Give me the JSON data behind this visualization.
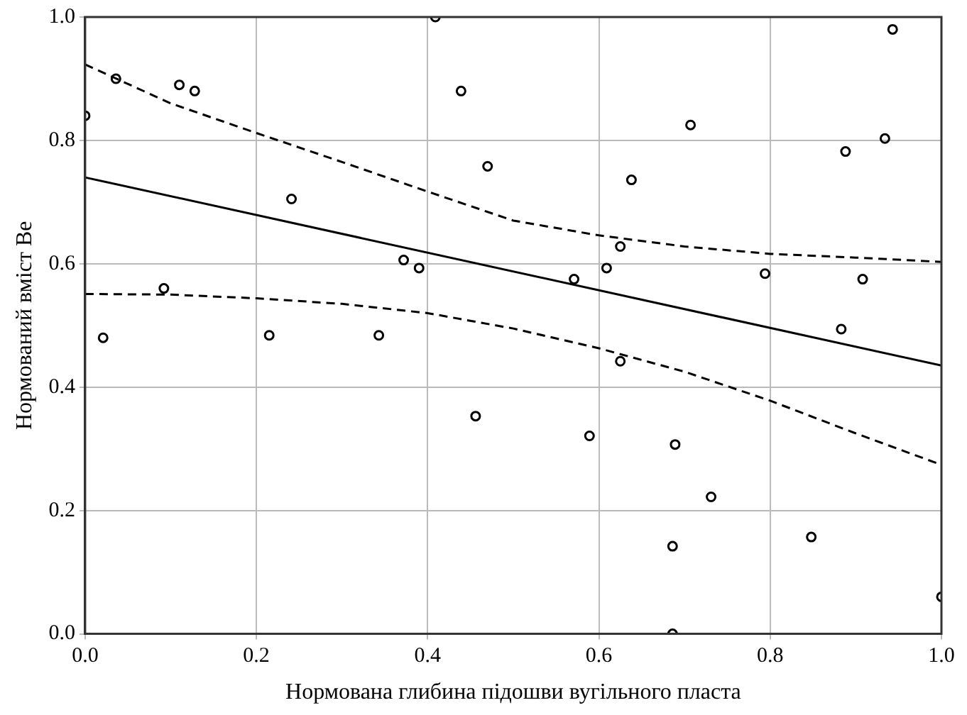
{
  "chart_data": {
    "type": "scatter",
    "xlabel": "Нормована глибина підошви вугільного пласта",
    "ylabel": "Нормований вміст Be",
    "xlim": [
      0,
      1
    ],
    "ylim": [
      0,
      1
    ],
    "xticks": [
      {
        "value": 0,
        "label": "0.0"
      },
      {
        "value": 0.2,
        "label": "0.2"
      },
      {
        "value": 0.4,
        "label": "0.4"
      },
      {
        "value": 0.6,
        "label": "0.6"
      },
      {
        "value": 0.8,
        "label": "0.8"
      },
      {
        "value": 1,
        "label": "1.0"
      }
    ],
    "yticks": [
      {
        "value": 0,
        "label": "0.0"
      },
      {
        "value": 0.2,
        "label": "0.2"
      },
      {
        "value": 0.4,
        "label": "0.4"
      },
      {
        "value": 0.6,
        "label": "0.6"
      },
      {
        "value": 0.8,
        "label": "0.8"
      },
      {
        "value": 1,
        "label": "1.0"
      }
    ],
    "grid": true,
    "marker": "circle",
    "series": [
      {
        "color": "#000000",
        "x": [
          0.0,
          0.036,
          0.11,
          0.128,
          0.092,
          0.021,
          0.241,
          0.215,
          0.343,
          0.372,
          0.39,
          0.409,
          0.439,
          0.47,
          0.943,
          0.707,
          0.934,
          0.888,
          0.638,
          0.625,
          0.609,
          0.571,
          0.794,
          0.908,
          0.883,
          0.625,
          0.456,
          0.589,
          0.689,
          0.731,
          0.686,
          0.848,
          0.686,
          1.0
        ],
        "values": [
          0.84,
          0.9,
          0.89,
          0.88,
          0.56,
          0.48,
          0.705,
          0.484,
          0.484,
          0.606,
          0.593,
          1.0,
          0.88,
          0.758,
          0.98,
          0.825,
          0.803,
          0.782,
          0.736,
          0.628,
          0.593,
          0.575,
          0.584,
          0.575,
          0.494,
          0.442,
          0.353,
          0.321,
          0.307,
          0.222,
          0.142,
          0.157,
          0.0,
          0.06
        ]
      },
      {
        "type": "line",
        "marker": "none",
        "color": "#000000",
        "line_style": "solid",
        "x": [
          0,
          1
        ],
        "values": [
          0.74,
          0.435
        ]
      },
      {
        "type": "line",
        "color": "#000000",
        "line_style": "dashed",
        "x": [
          0,
          0.1,
          0.2,
          0.3,
          0.4,
          0.5,
          0.6,
          0.7,
          0.8,
          0.9,
          1.0
        ],
        "marker": "none",
        "values": [
          0.923,
          0.86,
          0.812,
          0.765,
          0.717,
          0.67,
          0.646,
          0.628,
          0.616,
          0.61,
          0.603
        ]
      },
      {
        "type": "line",
        "color": "#000000",
        "line_style": "dashed",
        "x": [
          0,
          0.1,
          0.2,
          0.3,
          0.4,
          0.5,
          0.6,
          0.7,
          0.8,
          0.9,
          1.0
        ],
        "marker": "none",
        "values": [
          0.551,
          0.55,
          0.544,
          0.535,
          0.52,
          0.495,
          0.463,
          0.425,
          0.378,
          0.325,
          0.274
        ]
      }
    ]
  }
}
